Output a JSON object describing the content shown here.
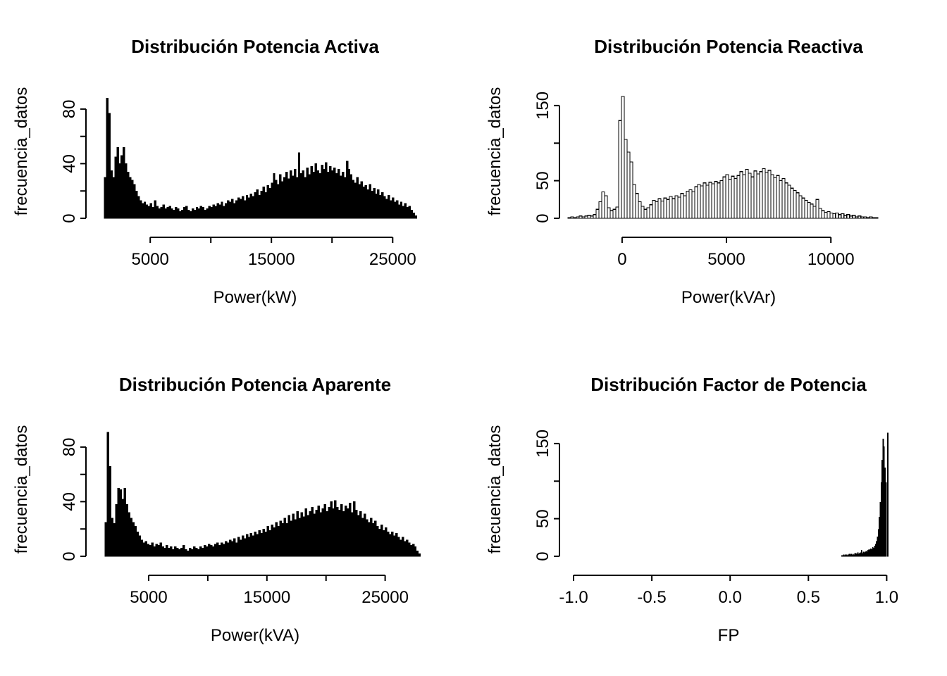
{
  "figure": {
    "background": "#ffffff",
    "ink": "#000000",
    "layout": "2x2-histogram-grid"
  },
  "chart_data": [
    {
      "id": "potencia-activa",
      "type": "bar",
      "title": "Distribución Potencia Activa",
      "xlabel": "Power(kW)",
      "ylabel": "frecuencia_datos",
      "x_domain": [
        -300,
        27600
      ],
      "y_domain": [
        0,
        98
      ],
      "x_ticks": [
        {
          "v": 5000,
          "label": "5000"
        },
        {
          "v": 10000,
          "label": ""
        },
        {
          "v": 15000,
          "label": "15000"
        },
        {
          "v": 20000,
          "label": ""
        },
        {
          "v": 25000,
          "label": "25000"
        }
      ],
      "y_ticks": [
        {
          "v": 0,
          "label": "0"
        },
        {
          "v": 20,
          "label": ""
        },
        {
          "v": 40,
          "label": "40"
        },
        {
          "v": 60,
          "label": ""
        },
        {
          "v": 80,
          "label": "80"
        }
      ],
      "bar_fill": "#000000",
      "bar_stroke": "#000000",
      "bar_stroke_width": 0.5,
      "bars": {
        "start": 1200,
        "bin_width": 172,
        "counts": [
          30,
          88,
          77,
          35,
          30,
          45,
          52,
          40,
          46,
          52,
          40,
          34,
          30,
          28,
          25,
          20,
          16,
          13,
          11,
          12,
          10,
          9,
          11,
          8,
          13,
          9,
          7,
          8,
          10,
          7,
          8,
          9,
          7,
          6,
          8,
          7,
          5,
          6,
          8,
          9,
          6,
          5,
          7,
          6,
          8,
          7,
          9,
          8,
          6,
          7,
          9,
          8,
          10,
          9,
          11,
          10,
          12,
          9,
          11,
          13,
          12,
          14,
          11,
          13,
          15,
          14,
          16,
          13,
          17,
          15,
          18,
          16,
          19,
          21,
          17,
          20,
          23,
          19,
          24,
          22,
          26,
          33,
          28,
          25,
          32,
          27,
          30,
          34,
          29,
          35,
          31,
          36,
          30,
          48,
          33,
          35,
          30,
          37,
          32,
          38,
          34,
          40,
          35,
          33,
          39,
          36,
          41,
          34,
          38,
          35,
          37,
          33,
          36,
          31,
          34,
          30,
          42,
          36,
          32,
          28,
          26,
          30,
          25,
          27,
          23,
          24,
          21,
          25,
          20,
          22,
          18,
          21,
          17,
          19,
          16,
          14,
          17,
          13,
          15,
          12,
          13,
          10,
          12,
          9,
          11,
          8,
          9,
          6,
          4,
          2
        ]
      }
    },
    {
      "id": "potencia-reactiva",
      "type": "bar",
      "title": "Distribución Potencia Reactiva",
      "xlabel": "Power(kVAr)",
      "ylabel": "frecuencia_datos",
      "x_domain": [
        -3000,
        13200
      ],
      "y_domain": [
        0,
        178
      ],
      "x_ticks": [
        {
          "v": 0,
          "label": "0"
        },
        {
          "v": 5000,
          "label": "5000"
        },
        {
          "v": 10000,
          "label": "10000"
        }
      ],
      "y_ticks": [
        {
          "v": 0,
          "label": "0"
        },
        {
          "v": 50,
          "label": "50"
        },
        {
          "v": 100,
          "label": ""
        },
        {
          "v": 150,
          "label": "150"
        }
      ],
      "bar_fill": "#ffffff",
      "bar_stroke": "#000000",
      "bar_stroke_width": 1.2,
      "bars": {
        "start": -2600,
        "bin_width": 135,
        "counts": [
          1,
          2,
          1,
          2,
          3,
          2,
          3,
          4,
          3,
          5,
          12,
          22,
          35,
          30,
          14,
          10,
          12,
          15,
          130,
          162,
          105,
          88,
          75,
          45,
          33,
          22,
          16,
          12,
          14,
          18,
          24,
          22,
          26,
          23,
          27,
          25,
          29,
          26,
          30,
          28,
          33,
          30,
          36,
          38,
          35,
          42,
          45,
          43,
          47,
          44,
          48,
          46,
          49,
          47,
          50,
          55,
          58,
          52,
          56,
          53,
          57,
          62,
          58,
          65,
          60,
          55,
          63,
          59,
          62,
          66,
          61,
          64,
          58,
          54,
          57,
          50,
          53,
          47,
          44,
          40,
          37,
          34,
          30,
          27,
          24,
          21,
          19,
          16,
          25,
          13,
          10,
          8,
          9,
          7,
          6,
          7,
          5,
          6,
          4,
          5,
          3,
          4,
          2,
          3,
          2,
          2,
          1,
          2,
          1,
          1
        ]
      }
    },
    {
      "id": "potencia-aparente",
      "type": "bar",
      "title": "Distribución Potencia Aparente",
      "xlabel": "Power(kVA)",
      "ylabel": "frecuencia_datos",
      "x_domain": [
        -300,
        28300
      ],
      "y_domain": [
        0,
        98
      ],
      "x_ticks": [
        {
          "v": 5000,
          "label": "5000"
        },
        {
          "v": 10000,
          "label": ""
        },
        {
          "v": 15000,
          "label": "15000"
        },
        {
          "v": 20000,
          "label": ""
        },
        {
          "v": 25000,
          "label": "25000"
        }
      ],
      "y_ticks": [
        {
          "v": 0,
          "label": "0"
        },
        {
          "v": 20,
          "label": ""
        },
        {
          "v": 40,
          "label": "40"
        },
        {
          "v": 60,
          "label": ""
        },
        {
          "v": 80,
          "label": "80"
        }
      ],
      "bar_fill": "#000000",
      "bar_stroke": "#000000",
      "bar_stroke_width": 0.5,
      "bars": {
        "start": 1300,
        "bin_width": 178,
        "counts": [
          25,
          91,
          66,
          28,
          24,
          38,
          50,
          49,
          42,
          50,
          38,
          32,
          28,
          25,
          22,
          18,
          15,
          12,
          10,
          11,
          9,
          8,
          10,
          7,
          9,
          8,
          10,
          7,
          6,
          8,
          6,
          7,
          5,
          7,
          6,
          5,
          6,
          8,
          5,
          4,
          6,
          5,
          7,
          6,
          5,
          7,
          6,
          8,
          7,
          9,
          8,
          7,
          9,
          10,
          8,
          10,
          9,
          11,
          10,
          12,
          11,
          13,
          10,
          14,
          12,
          15,
          13,
          16,
          14,
          17,
          15,
          18,
          16,
          19,
          17,
          20,
          18,
          22,
          19,
          23,
          21,
          25,
          22,
          26,
          24,
          28,
          24,
          30,
          26,
          31,
          27,
          33,
          28,
          32,
          29,
          35,
          30,
          33,
          36,
          31,
          34,
          37,
          32,
          35,
          38,
          33,
          36,
          40,
          35,
          41,
          36,
          34,
          38,
          33,
          37,
          35,
          39,
          32,
          40,
          34,
          30,
          33,
          28,
          31,
          27,
          25,
          28,
          24,
          26,
          22,
          20,
          23,
          19,
          21,
          18,
          16,
          18,
          15,
          17,
          14,
          12,
          14,
          11,
          12,
          10,
          8,
          9,
          7,
          4,
          2
        ]
      }
    },
    {
      "id": "factor-de-potencia",
      "type": "bar",
      "title": "Distribución Factor de Potencia",
      "xlabel": "FP",
      "ylabel": "frecuencia_datos",
      "x_domain": [
        -1.09,
        1.07
      ],
      "y_domain": [
        0,
        178
      ],
      "x_ticks": [
        {
          "v": -1.0,
          "label": "-1.0"
        },
        {
          "v": -0.5,
          "label": "-0.5"
        },
        {
          "v": 0.0,
          "label": "0.0"
        },
        {
          "v": 0.5,
          "label": "0.5"
        },
        {
          "v": 1.0,
          "label": "1.0"
        }
      ],
      "y_ticks": [
        {
          "v": 0,
          "label": "0"
        },
        {
          "v": 50,
          "label": "50"
        },
        {
          "v": 100,
          "label": ""
        },
        {
          "v": 150,
          "label": "150"
        }
      ],
      "bar_fill": "#000000",
      "bar_stroke": "#000000",
      "bar_stroke_width": 0.5,
      "bars": {
        "start": 0.71,
        "bin_width": 0.006,
        "counts": [
          1,
          1,
          2,
          1,
          2,
          2,
          1,
          2,
          3,
          2,
          3,
          2,
          3,
          2,
          4,
          4,
          3,
          5,
          3,
          4,
          5,
          8,
          4,
          6,
          5,
          6,
          7,
          6,
          8,
          9,
          8,
          10,
          9,
          12,
          11,
          14,
          16,
          20,
          26,
          36,
          52,
          72,
          98,
          128,
          156,
          146,
          118,
          98,
          0,
          164
        ]
      }
    }
  ]
}
